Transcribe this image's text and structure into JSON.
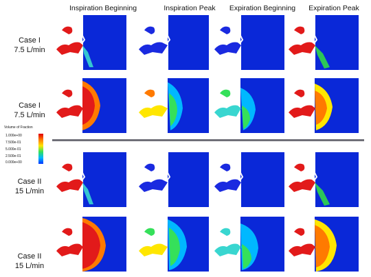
{
  "columns": [
    "Inspiration Beginning",
    "Inspiration Peak",
    "Expiration Beginning",
    "Expiration Peak"
  ],
  "rows": [
    {
      "case": "Case I",
      "flow": "7.5 L/min"
    },
    {
      "case": "Case I",
      "flow": "7.5 L/min"
    },
    {
      "case": "Case II",
      "flow": "15 L/min"
    },
    {
      "case": "Case II",
      "flow": "15 L/min"
    }
  ],
  "legend": {
    "title": "Volume of Fraction",
    "ticks": [
      "1.000e+00",
      "7.500e-01",
      "5.000e-01",
      "2.500e-01",
      "0.000e+00"
    ]
  },
  "colors": {
    "background_field": "#0a28d8",
    "nasal_red": "#e21a1a",
    "nasal_blue": "#1a2ae0",
    "plume_cyan": "#39d6d0",
    "plume_green": "#2ed04f"
  }
}
